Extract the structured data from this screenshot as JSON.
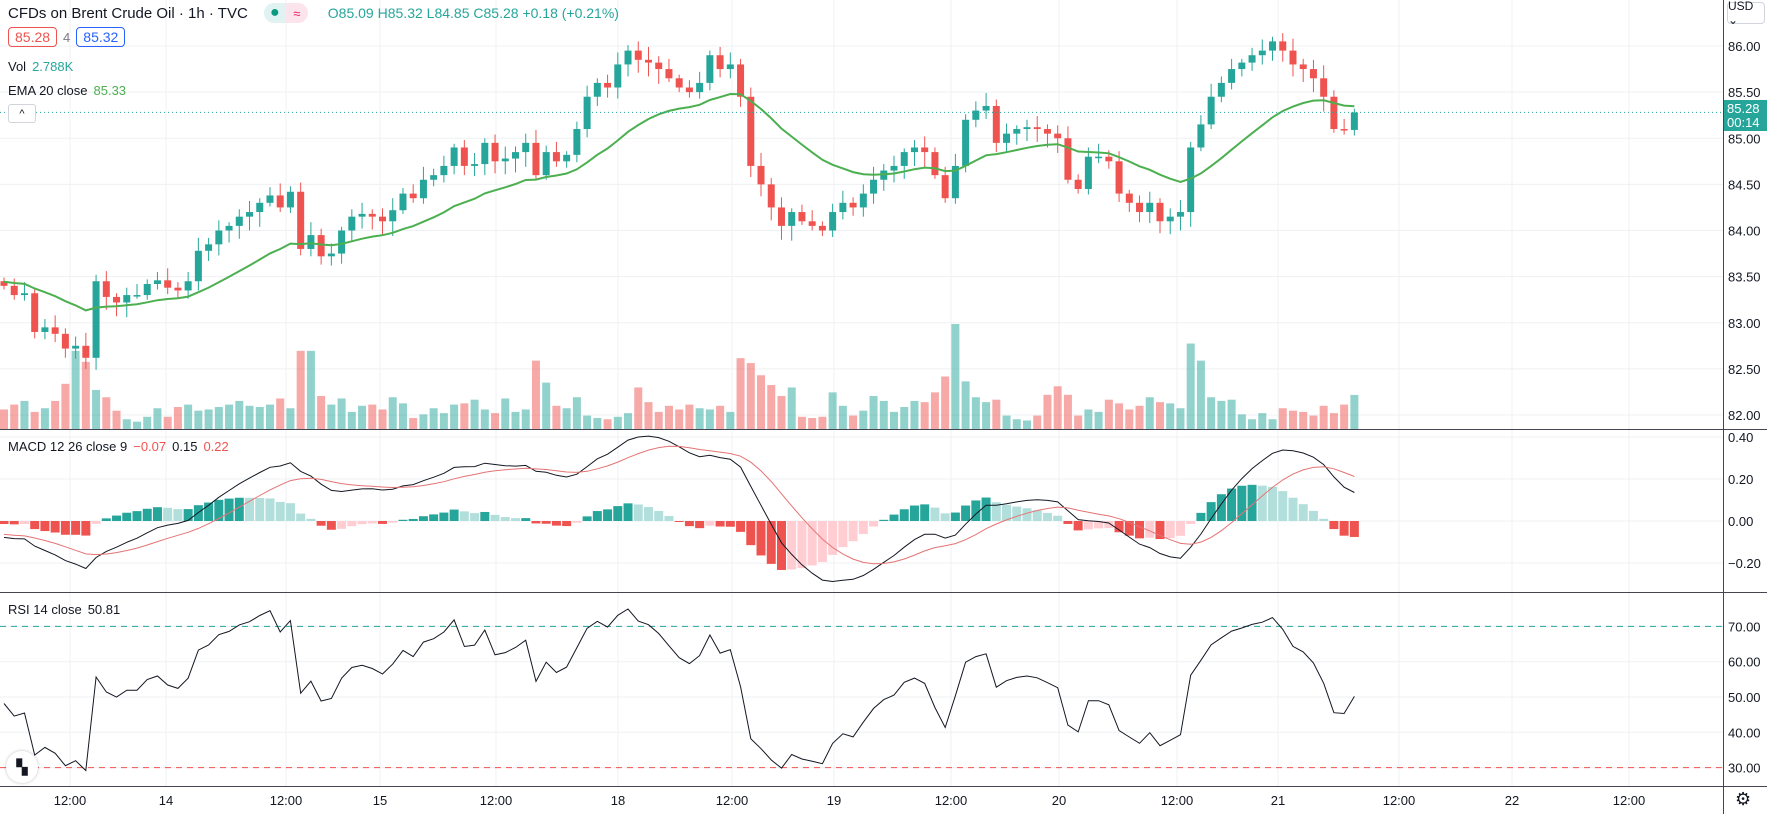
{
  "header": {
    "title": "CFDs on Brent Crude Oil · 1h · TVC",
    "status_dot": "market-open-dot",
    "status_wave": "≈",
    "open": "O85.09",
    "high": "H85.32",
    "low": "L84.85",
    "close": "C85.28",
    "change": "+0.18 (+0.21%)",
    "bid": "85.28",
    "spread": "4",
    "ask": "85.32"
  },
  "volume_legend": {
    "label": "Vol",
    "value": "2.788K"
  },
  "ema_legend": {
    "label": "EMA 20 close",
    "value": "85.33"
  },
  "macd_legend": {
    "label": "MACD 12 26 close 9",
    "hist": "−0.07",
    "macd": "0.15",
    "signal": "0.22"
  },
  "rsi_legend": {
    "label": "RSI 14 close",
    "value": "50.81"
  },
  "collapse_icon": "^",
  "currency_button": "USD ⌄",
  "last_price": {
    "price": "85.28",
    "countdown": "00:14"
  },
  "logo_text": "TV",
  "settings_icon": "⚙",
  "colors": {
    "up": "#26a69a",
    "down": "#ef5350",
    "ema": "#4caf50",
    "macd": "#131722",
    "signal": "#e57373",
    "rsi": "#131722"
  },
  "price_axis": [
    "86.00",
    "85.50",
    "85.00",
    "84.50",
    "84.00",
    "83.50",
    "83.00",
    "82.50",
    "82.00"
  ],
  "macd_axis": [
    "0.40",
    "0.20",
    "0.00",
    "−0.20"
  ],
  "rsi_axis": [
    "70.00",
    "60.00",
    "50.00",
    "40.00",
    "30.00"
  ],
  "time_axis": [
    "12:00",
    "14",
    "12:00",
    "15",
    "12:00",
    "18",
    "12:00",
    "19",
    "12:00",
    "20",
    "12:00",
    "21",
    "12:00",
    "22",
    "12:00"
  ],
  "chart_data": {
    "type": "candlestick",
    "symbol": "CFDs on Brent Crude Oil",
    "interval": "1h",
    "ylim": [
      81.8,
      86.5
    ],
    "closes": [
      83.4,
      83.3,
      83.32,
      82.9,
      82.95,
      82.88,
      82.72,
      82.75,
      82.62,
      83.45,
      83.28,
      83.22,
      83.3,
      83.3,
      83.42,
      83.46,
      83.38,
      83.35,
      83.45,
      83.78,
      83.85,
      84.0,
      84.05,
      84.15,
      84.2,
      84.3,
      84.38,
      84.25,
      84.42,
      83.8,
      83.95,
      83.72,
      83.75,
      84.0,
      84.15,
      84.18,
      84.15,
      84.1,
      84.22,
      84.4,
      84.35,
      84.55,
      84.6,
      84.7,
      84.9,
      84.7,
      84.72,
      84.95,
      84.75,
      84.78,
      84.85,
      84.95,
      84.6,
      84.85,
      84.75,
      84.82,
      85.1,
      85.45,
      85.6,
      85.55,
      85.8,
      85.95,
      85.85,
      85.82,
      85.75,
      85.65,
      85.55,
      85.5,
      85.6,
      85.9,
      85.75,
      85.8,
      85.45,
      84.7,
      84.5,
      84.25,
      84.05,
      84.2,
      84.1,
      84.05,
      84.0,
      84.2,
      84.3,
      84.25,
      84.4,
      84.55,
      84.65,
      84.7,
      84.85,
      84.9,
      84.85,
      84.6,
      84.35,
      84.7,
      85.2,
      85.3,
      85.35,
      84.95,
      85.05,
      85.1,
      85.12,
      85.1,
      85.05,
      85.0,
      84.55,
      84.45,
      84.8,
      84.8,
      84.75,
      84.4,
      84.3,
      84.2,
      84.3,
      84.1,
      84.15,
      84.2,
      84.9,
      85.15,
      85.45,
      85.6,
      85.75,
      85.82,
      85.9,
      85.95,
      86.05,
      85.95,
      85.8,
      85.75,
      85.65,
      85.45,
      85.1,
      85.09,
      85.28
    ],
    "first_open": 83.45,
    "volumes_k": [
      1.6,
      2.0,
      2.3,
      1.4,
      1.7,
      2.3,
      3.7,
      6.4,
      5.5,
      3.2,
      2.6,
      1.5,
      0.8,
      0.6,
      1.0,
      1.7,
      1.0,
      1.8,
      2.0,
      1.5,
      1.6,
      1.8,
      2.0,
      2.3,
      1.9,
      1.8,
      2.0,
      2.5,
      1.7,
      6.4,
      6.4,
      2.7,
      2.0,
      2.5,
      1.4,
      1.9,
      2.0,
      1.6,
      2.6,
      2.1,
      0.9,
      1.2,
      1.7,
      1.3,
      2.0,
      2.1,
      2.4,
      1.6,
      1.3,
      2.5,
      1.4,
      1.6,
      5.6,
      3.8,
      1.9,
      1.7,
      2.6,
      1.1,
      0.9,
      0.8,
      1.0,
      1.3,
      3.4,
      2.2,
      1.4,
      1.9,
      1.6,
      2.0,
      1.7,
      1.6,
      1.9,
      1.4,
      5.8,
      5.4,
      4.4,
      3.6,
      2.7,
      3.4,
      1.0,
      0.9,
      1.0,
      3.0,
      1.9,
      1.1,
      1.5,
      2.7,
      2.3,
      1.4,
      1.8,
      2.3,
      2.2,
      3.0,
      4.3,
      8.6,
      3.9,
      2.6,
      2.2,
      2.4,
      1.1,
      0.8,
      0.7,
      1.1,
      2.8,
      3.5,
      2.8,
      1.1,
      1.6,
      1.4,
      2.4,
      2.1,
      1.6,
      1.9,
      2.6,
      2.2,
      2.1,
      1.7,
      7.0,
      5.6,
      2.6,
      2.3,
      2.4,
      1.2,
      0.8,
      1.3,
      0.8,
      1.7,
      1.5,
      1.4,
      1.1,
      1.9,
      1.3,
      2.0,
      2.788
    ],
    "indicators": {
      "ema_period": 20,
      "macd": [
        12,
        26,
        9
      ],
      "rsi_period": 14,
      "rsi_bands": [
        70,
        30
      ]
    },
    "macd_ylim": [
      -0.3,
      0.42
    ],
    "rsi_ylim": [
      25,
      80
    ]
  }
}
